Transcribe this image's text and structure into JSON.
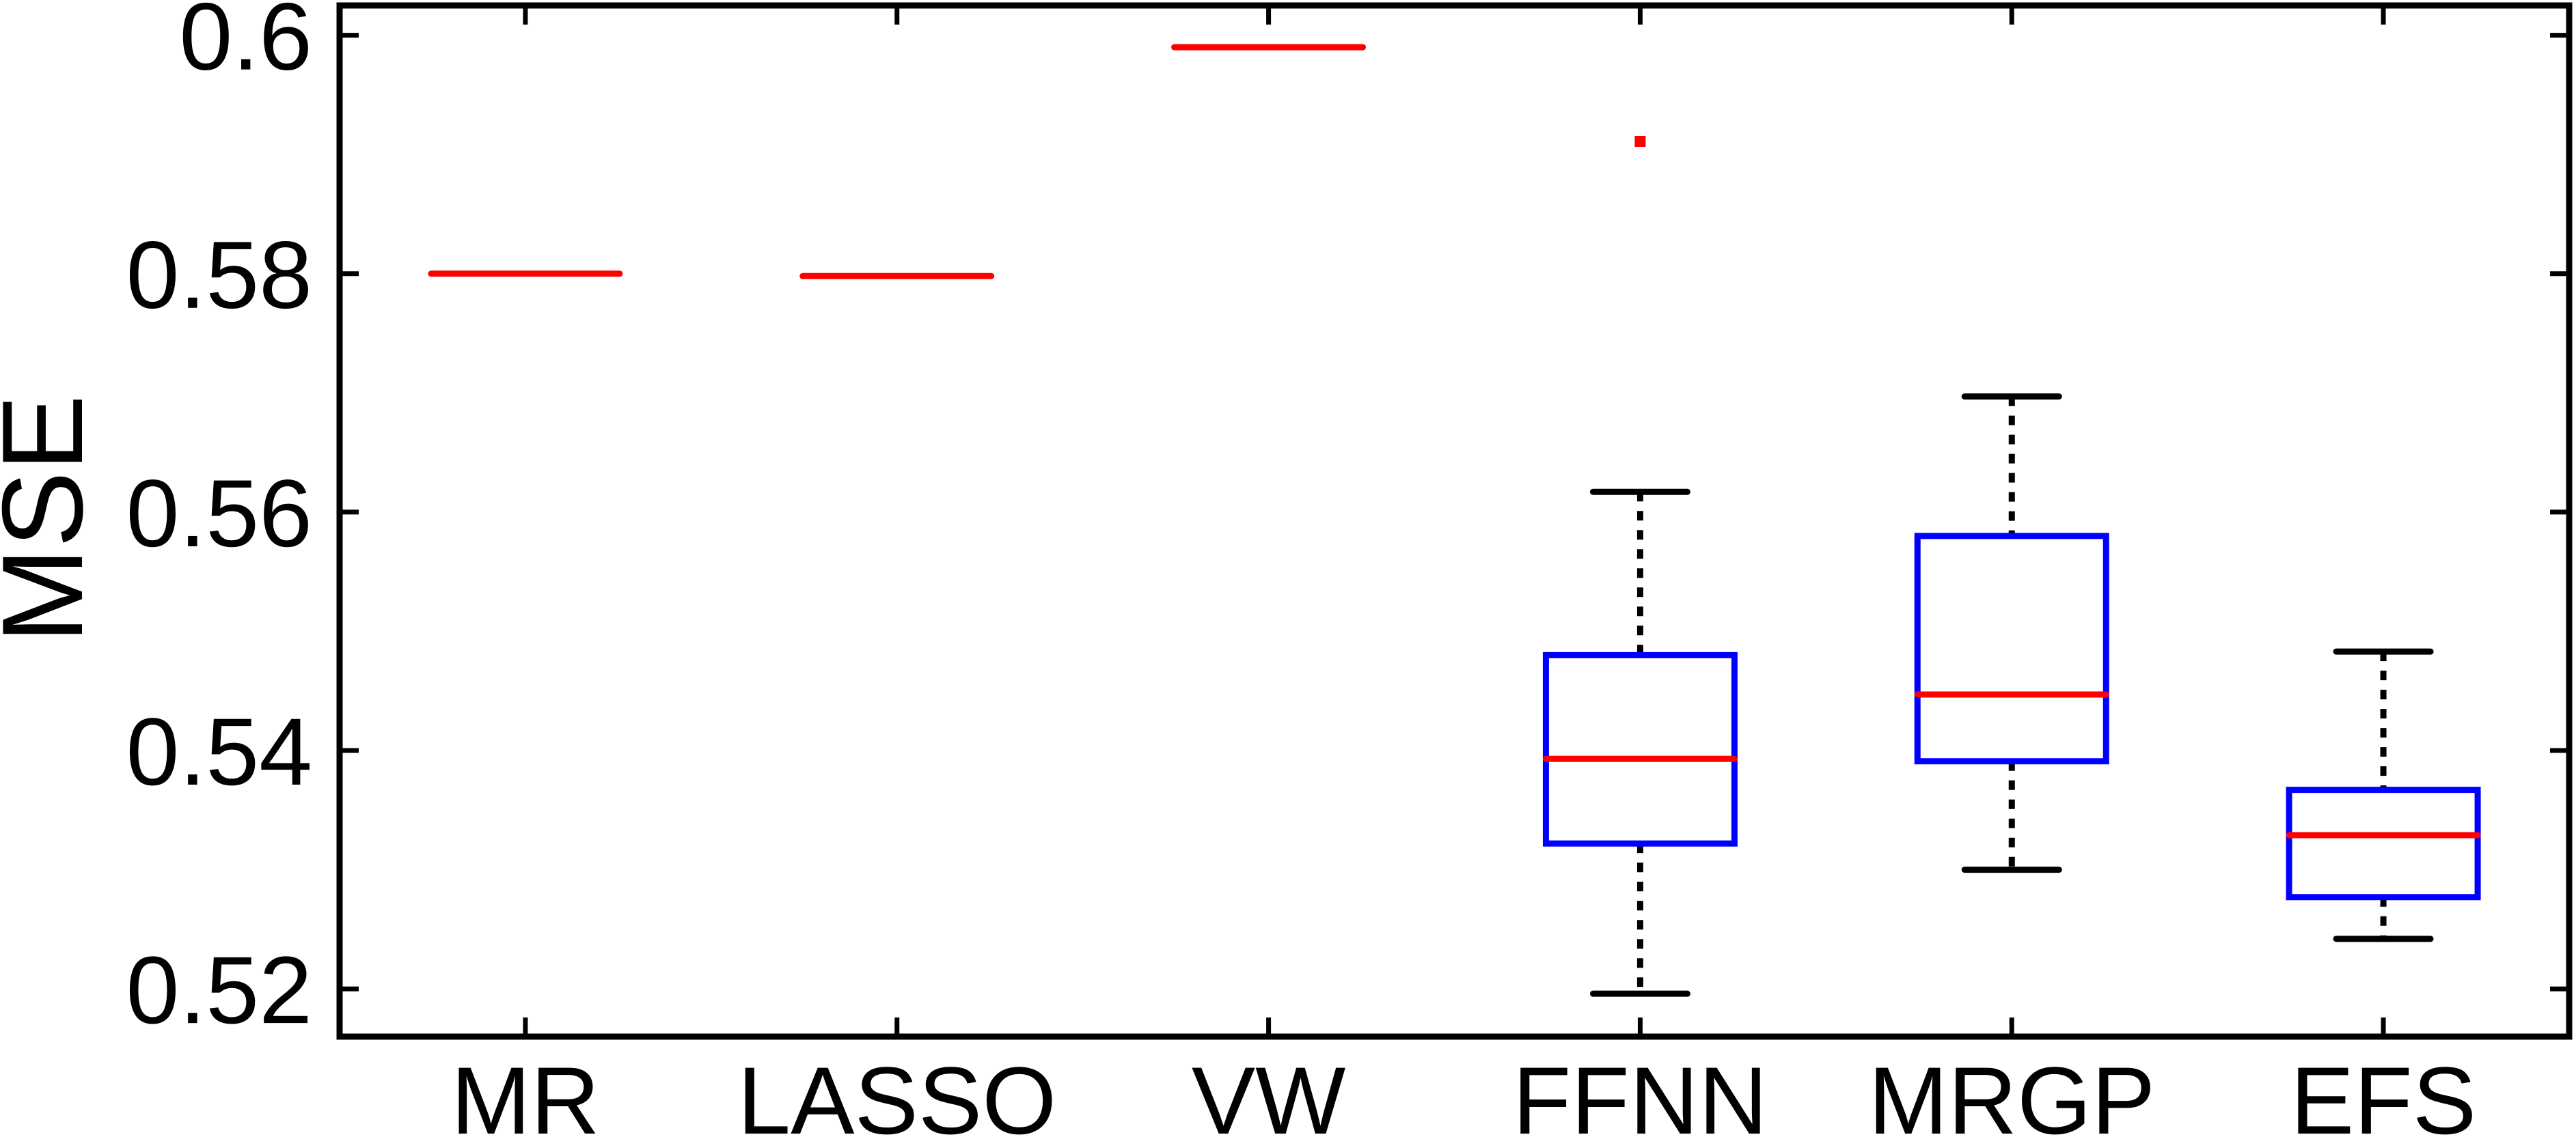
{
  "chart_data": {
    "type": "boxplot",
    "title": "",
    "xlabel": "",
    "ylabel": "MSE",
    "ylim": [
      0.516,
      0.6025
    ],
    "yticks": [
      0.52,
      0.54,
      0.56,
      0.58,
      0.6
    ],
    "ytick_labels": [
      "0.52",
      "0.54",
      "0.56",
      "0.58",
      "0.6"
    ],
    "categories": [
      "MR",
      "LASSO",
      "VW",
      "FFNN",
      "MRGP",
      "EFS"
    ],
    "boxes": [
      {
        "label": "MR",
        "whisker_low": 0.58,
        "q1": 0.58,
        "median": 0.58,
        "q3": 0.58,
        "whisker_high": 0.58,
        "outliers": []
      },
      {
        "label": "LASSO",
        "whisker_low": 0.5798,
        "q1": 0.5798,
        "median": 0.5798,
        "q3": 0.5798,
        "whisker_high": 0.5798,
        "outliers": []
      },
      {
        "label": "VW",
        "whisker_low": 0.599,
        "q1": 0.599,
        "median": 0.599,
        "q3": 0.599,
        "whisker_high": 0.599,
        "outliers": []
      },
      {
        "label": "FFNN",
        "whisker_low": 0.5196,
        "q1": 0.5322,
        "median": 0.5393,
        "q3": 0.548,
        "whisker_high": 0.5617,
        "outliers": [
          0.5911
        ]
      },
      {
        "label": "MRGP",
        "whisker_low": 0.53,
        "q1": 0.5391,
        "median": 0.5447,
        "q3": 0.558,
        "whisker_high": 0.5697,
        "outliers": []
      },
      {
        "label": "EFS",
        "whisker_low": 0.5242,
        "q1": 0.5277,
        "median": 0.5329,
        "q3": 0.5367,
        "whisker_high": 0.5483,
        "outliers": []
      }
    ],
    "colors": {
      "box": "#0000ff",
      "median": "#ff0000",
      "whisker": "#000000",
      "outlier": "#ff0000",
      "axes": "#000000"
    },
    "grid": false,
    "legend": "none"
  }
}
